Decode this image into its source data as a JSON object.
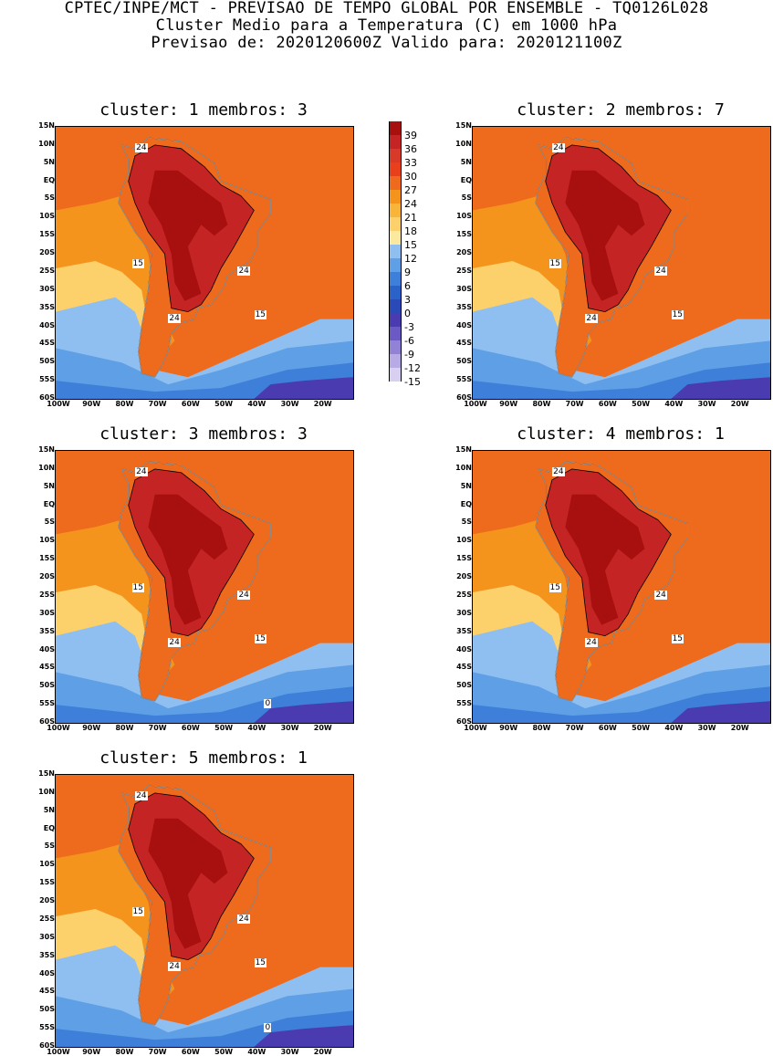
{
  "header": {
    "line1": "CPTEC/INPE/MCT - PREVISAO DE TEMPO GLOBAL POR ENSEMBLE - TQ0126L028",
    "line2": "Cluster Medio para a Temperatura (C) em 1000 hPa",
    "line3": "Previsao de: 2020120600Z   Valido para: 2020121100Z"
  },
  "lat_labels": [
    "15N",
    "10N",
    "5N",
    "EQ",
    "5S",
    "10S",
    "15S",
    "20S",
    "25S",
    "30S",
    "35S",
    "40S",
    "45S",
    "50S",
    "55S",
    "60S"
  ],
  "lon_labels": [
    "100W",
    "90W",
    "80W",
    "70W",
    "60W",
    "50W",
    "40W",
    "30W",
    "20W"
  ],
  "clusters": [
    {
      "title": "cluster: 1   membros: 3",
      "contour_labels": [
        "24",
        "15",
        "24",
        "24",
        "15"
      ]
    },
    {
      "title": "cluster: 2   membros: 7",
      "contour_labels": [
        "24",
        "15",
        "24",
        "24",
        "15"
      ]
    },
    {
      "title": "cluster: 3   membros: 3",
      "contour_labels": [
        "24",
        "15",
        "24",
        "24",
        "15",
        "0"
      ]
    },
    {
      "title": "cluster: 4   membros: 1",
      "contour_labels": [
        "24",
        "15",
        "24",
        "24",
        "15"
      ]
    },
    {
      "title": "cluster: 5   membros: 1",
      "contour_labels": [
        "24",
        "15",
        "24",
        "24",
        "15",
        "0"
      ]
    }
  ],
  "colorbar": {
    "labels": [
      "39",
      "36",
      "33",
      "30",
      "27",
      "24",
      "21",
      "18",
      "15",
      "12",
      "9",
      "6",
      "3",
      "0",
      "-3",
      "-6",
      "-9",
      "-12",
      "-15"
    ],
    "colors": [
      "#a80f0f",
      "#c42424",
      "#d83a2a",
      "#e8401c",
      "#ee6a1c",
      "#f5941c",
      "#f9b43a",
      "#fcd06a",
      "#fbe9a0",
      "#8fbff0",
      "#5e9fe6",
      "#3e7fda",
      "#2a62c8",
      "#2a4ab8",
      "#4a3cb0",
      "#6c5ac4",
      "#9282d6",
      "#b8aae4",
      "#d8d0f0"
    ]
  },
  "colors": {
    "warm_bg": "#ee6a1c",
    "land_hot": "#c42424",
    "land_very_hot": "#a80f0f",
    "mid_orange": "#f5941c",
    "yellow": "#fcd06a",
    "light_yellow": "#fbe9a0",
    "light_blue": "#8fbff0",
    "blue": "#5e9fe6",
    "deep_blue": "#3e7fda",
    "navy": "#2a4ab8",
    "purple": "#4a3cb0",
    "border": "#a0a0a0"
  }
}
